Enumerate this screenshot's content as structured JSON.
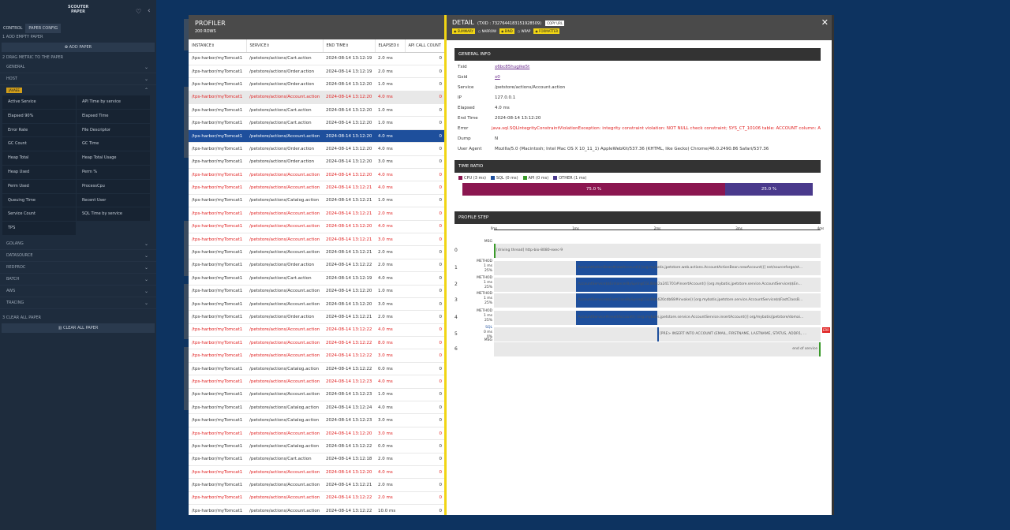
{
  "sidebar": {
    "brand": "SCOUTER PAPER",
    "tabs": [
      "CONTROL",
      "PAPER CONFIG"
    ],
    "section1": "1   ADD EMPTY PAPER",
    "add_button": "ADD PAPER",
    "section2": "2   DRAG METRIC TO THE PAPER",
    "groups_top": [
      "GENERAL",
      "HOST"
    ],
    "active_group_badge": "JAVAEE",
    "metrics": [
      "Active Service",
      "API Time by service",
      "Elapsed 90%",
      "Elapsed Time",
      "Error Rate",
      "File Descriptor",
      "GC Count",
      "GC Time",
      "Heap Total",
      "Heap Total Usage",
      "Heap Used",
      "Perm %",
      "Perm Used",
      "ProcessCpu",
      "Queuing Time",
      "Recent User",
      "Service Count",
      "SQL Time by service",
      "TPS"
    ],
    "groups_bottom": [
      "GOLANG",
      "DATASOURCE",
      "REDPROC",
      "BATCH",
      "AWS",
      "TRACING"
    ],
    "section3": "3   CLEAR ALL PAPER",
    "clear_button": "CLEAR ALL PAPER"
  },
  "profiler": {
    "title": "PROFILER",
    "rows_label": "200 ROWS",
    "columns": [
      "INSTANCE",
      "SERVICE",
      "END TIME",
      "ELAPSED",
      "API CALL COUNT"
    ],
    "rows": [
      {
        "instance": "/tps-harbor/myTomcat1",
        "service": "/petstore/actions/Cart.action",
        "end": "2024-08-14 13:12:19",
        "elapsed": "2.0 ms",
        "api": "0",
        "state": ""
      },
      {
        "instance": "/tps-harbor/myTomcat1",
        "service": "/petstore/actions/Order.action",
        "end": "2024-08-14 13:12:19",
        "elapsed": "2.0 ms",
        "api": "0",
        "state": ""
      },
      {
        "instance": "/tps-harbor/myTomcat1",
        "service": "/petstore/actions/Order.action",
        "end": "2024-08-14 13:12:20",
        "elapsed": "1.0 ms",
        "api": "0",
        "state": ""
      },
      {
        "instance": "/tps-harbor/myTomcat1",
        "service": "/petstore/actions/Account.action",
        "end": "2024-08-14 13:12:20",
        "elapsed": "4.0 ms",
        "api": "0",
        "state": "err hl"
      },
      {
        "instance": "/tps-harbor/myTomcat1",
        "service": "/petstore/actions/Cart.action",
        "end": "2024-08-14 13:12:20",
        "elapsed": "1.0 ms",
        "api": "0",
        "state": ""
      },
      {
        "instance": "/tps-harbor/myTomcat1",
        "service": "/petstore/actions/Cart.action",
        "end": "2024-08-14 13:12:20",
        "elapsed": "1.0 ms",
        "api": "0",
        "state": ""
      },
      {
        "instance": "/tps-harbor/myTomcat1",
        "service": "/petstore/actions/Account.action",
        "end": "2024-08-14 13:12:20",
        "elapsed": "4.0 ms",
        "api": "0",
        "state": "sel"
      },
      {
        "instance": "/tps-harbor/myTomcat1",
        "service": "/petstore/actions/Order.action",
        "end": "2024-08-14 13:12:20",
        "elapsed": "4.0 ms",
        "api": "0",
        "state": ""
      },
      {
        "instance": "/tps-harbor/myTomcat1",
        "service": "/petstore/actions/Order.action",
        "end": "2024-08-14 13:12:20",
        "elapsed": "3.0 ms",
        "api": "0",
        "state": ""
      },
      {
        "instance": "/tps-harbor/myTomcat1",
        "service": "/petstore/actions/Account.action",
        "end": "2024-08-14 13:12:20",
        "elapsed": "4.0 ms",
        "api": "0",
        "state": "err"
      },
      {
        "instance": "/tps-harbor/myTomcat1",
        "service": "/petstore/actions/Account.action",
        "end": "2024-08-14 13:12:21",
        "elapsed": "4.0 ms",
        "api": "0",
        "state": "err"
      },
      {
        "instance": "/tps-harbor/myTomcat1",
        "service": "/petstore/actions/Catalog.action",
        "end": "2024-08-14 13:12:21",
        "elapsed": "1.0 ms",
        "api": "0",
        "state": ""
      },
      {
        "instance": "/tps-harbor/myTomcat1",
        "service": "/petstore/actions/Account.action",
        "end": "2024-08-14 13:12:21",
        "elapsed": "2.0 ms",
        "api": "0",
        "state": "err"
      },
      {
        "instance": "/tps-harbor/myTomcat1",
        "service": "/petstore/actions/Account.action",
        "end": "2024-08-14 13:12:20",
        "elapsed": "4.0 ms",
        "api": "0",
        "state": "err"
      },
      {
        "instance": "/tps-harbor/myTomcat1",
        "service": "/petstore/actions/Account.action",
        "end": "2024-08-14 13:12:21",
        "elapsed": "3.0 ms",
        "api": "0",
        "state": "err"
      },
      {
        "instance": "/tps-harbor/myTomcat1",
        "service": "/petstore/actions/Account.action",
        "end": "2024-08-14 13:12:21",
        "elapsed": "2.0 ms",
        "api": "0",
        "state": ""
      },
      {
        "instance": "/tps-harbor/myTomcat1",
        "service": "/petstore/actions/Order.action",
        "end": "2024-08-14 13:12:22",
        "elapsed": "2.0 ms",
        "api": "0",
        "state": ""
      },
      {
        "instance": "/tps-harbor/myTomcat1",
        "service": "/petstore/actions/Cart.action",
        "end": "2024-08-14 13:12:19",
        "elapsed": "4.0 ms",
        "api": "0",
        "state": ""
      },
      {
        "instance": "/tps-harbor/myTomcat1",
        "service": "/petstore/actions/Account.action",
        "end": "2024-08-14 13:12:20",
        "elapsed": "1.0 ms",
        "api": "0",
        "state": ""
      },
      {
        "instance": "/tps-harbor/myTomcat1",
        "service": "/petstore/actions/Account.action",
        "end": "2024-08-14 13:12:20",
        "elapsed": "3.0 ms",
        "api": "0",
        "state": ""
      },
      {
        "instance": "/tps-harbor/myTomcat1",
        "service": "/petstore/actions/Order.action",
        "end": "2024-08-14 13:12:21",
        "elapsed": "2.0 ms",
        "api": "0",
        "state": ""
      },
      {
        "instance": "/tps-harbor/myTomcat1",
        "service": "/petstore/actions/Account.action",
        "end": "2024-08-14 13:12:22",
        "elapsed": "4.0 ms",
        "api": "0",
        "state": "err"
      },
      {
        "instance": "/tps-harbor/myTomcat1",
        "service": "/petstore/actions/Account.action",
        "end": "2024-08-14 13:12:22",
        "elapsed": "8.0 ms",
        "api": "0",
        "state": "err"
      },
      {
        "instance": "/tps-harbor/myTomcat1",
        "service": "/petstore/actions/Account.action",
        "end": "2024-08-14 13:12:22",
        "elapsed": "3.0 ms",
        "api": "0",
        "state": "err"
      },
      {
        "instance": "/tps-harbor/myTomcat1",
        "service": "/petstore/actions/Catalog.action",
        "end": "2024-08-14 13:12:22",
        "elapsed": "0.0 ms",
        "api": "0",
        "state": ""
      },
      {
        "instance": "/tps-harbor/myTomcat1",
        "service": "/petstore/actions/Account.action",
        "end": "2024-08-14 13:12:23",
        "elapsed": "4.0 ms",
        "api": "0",
        "state": "err"
      },
      {
        "instance": "/tps-harbor/myTomcat1",
        "service": "/petstore/actions/Account.action",
        "end": "2024-08-14 13:12:23",
        "elapsed": "1.0 ms",
        "api": "0",
        "state": ""
      },
      {
        "instance": "/tps-harbor/myTomcat1",
        "service": "/petstore/actions/Catalog.action",
        "end": "2024-08-14 13:12:24",
        "elapsed": "4.0 ms",
        "api": "0",
        "state": ""
      },
      {
        "instance": "/tps-harbor/myTomcat1",
        "service": "/petstore/actions/Catalog.action",
        "end": "2024-08-14 13:12:23",
        "elapsed": "3.0 ms",
        "api": "0",
        "state": ""
      },
      {
        "instance": "/tps-harbor/myTomcat1",
        "service": "/petstore/actions/Account.action",
        "end": "2024-08-14 13:12:20",
        "elapsed": "3.0 ms",
        "api": "0",
        "state": "err"
      },
      {
        "instance": "/tps-harbor/myTomcat1",
        "service": "/petstore/actions/Catalog.action",
        "end": "2024-08-14 13:12:22",
        "elapsed": "0.0 ms",
        "api": "0",
        "state": ""
      },
      {
        "instance": "/tps-harbor/myTomcat1",
        "service": "/petstore/actions/Cart.action",
        "end": "2024-08-14 13:12:18",
        "elapsed": "2.0 ms",
        "api": "0",
        "state": ""
      },
      {
        "instance": "/tps-harbor/myTomcat1",
        "service": "/petstore/actions/Account.action",
        "end": "2024-08-14 13:12:20",
        "elapsed": "4.0 ms",
        "api": "0",
        "state": "err"
      },
      {
        "instance": "/tps-harbor/myTomcat1",
        "service": "/petstore/actions/Account.action",
        "end": "2024-08-14 13:12:21",
        "elapsed": "2.0 ms",
        "api": "0",
        "state": ""
      },
      {
        "instance": "/tps-harbor/myTomcat1",
        "service": "/petstore/actions/Account.action",
        "end": "2024-08-14 13:12:22",
        "elapsed": "2.0 ms",
        "api": "0",
        "state": "err"
      },
      {
        "instance": "/tps-harbor/myTomcat1",
        "service": "/petstore/actions/Account.action",
        "end": "2024-08-14 13:12:22",
        "elapsed": "10.0 ms",
        "api": "0",
        "state": ""
      }
    ]
  },
  "detail": {
    "title": "DETAIL",
    "txid": "(TXID : 7327644183151928509)",
    "copy_url": "COPY URL",
    "toggles": [
      {
        "label": "SUMMARY",
        "on": true
      },
      {
        "label": "NARROW",
        "on": false
      },
      {
        "label": "BIND",
        "on": true
      },
      {
        "label": "WRAP",
        "on": false
      },
      {
        "label": "FORMATTER",
        "on": true
      }
    ],
    "general_title": "GENERAL INFO",
    "general": [
      {
        "k": "Txid",
        "v": "x6bc85hugike5t",
        "cls": "link"
      },
      {
        "k": "Gxid",
        "v": "x0",
        "cls": "link"
      },
      {
        "k": "Service",
        "v": "/petstore/actions/Account.action",
        "cls": ""
      },
      {
        "k": "IP",
        "v": "127.0.0.1",
        "cls": ""
      },
      {
        "k": "Elapsed",
        "v": "4.0 ms",
        "cls": ""
      },
      {
        "k": "End Time",
        "v": "2024-08-14 13:12:20",
        "cls": ""
      },
      {
        "k": "Error",
        "v": "java.sql.SQLIntegrityConstraintViolationException: integrity constraint violation: NOT NULL check constraint; SYS_CT_10106 table: ACCOUNT column: A",
        "cls": "err"
      },
      {
        "k": "Dump",
        "v": "N",
        "cls": ""
      },
      {
        "k": "User Agent",
        "v": "Mozilla/5.0 (Macintosh; Intel Mac OS X 10_11_1) AppleWebKit/537.36 (KHTML, like Gecko) Chrome/46.0.2490.86 Safari/537.36",
        "cls": ""
      }
    ],
    "time_ratio_title": "TIME RATIO",
    "legend": [
      {
        "label": "CPU (3 ms)",
        "color": "#8b1650"
      },
      {
        "label": "SQL (0 ms)",
        "color": "#1e4f9c"
      },
      {
        "label": "API (0 ms)",
        "color": "#3a9a2a"
      },
      {
        "label": "OTHER (1 ms)",
        "color": "#4a3a8c"
      }
    ],
    "ratio": [
      {
        "label": "75.0 %",
        "pct": 75,
        "color": "#8b1650"
      },
      {
        "label": "25.0 %",
        "pct": 25,
        "color": "#4a3a8c"
      }
    ],
    "steps_title": "PROFILE STEP",
    "ticks": [
      "0ms",
      "1ms",
      "2ms",
      "3ms",
      "4ms"
    ],
    "steps": [
      {
        "idx": "0",
        "type": [
          "MSG"
        ],
        "start": 0,
        "dur": 0,
        "text": "[driving thread] http-bio-8080-exec-9",
        "bar_color": "#3a9a2a"
      },
      {
        "idx": "1",
        "type": [
          "METHOD",
          "1 ms",
          "25%"
        ],
        "start": 1,
        "dur": 1,
        "text": "AccountActionBean#newAccount() [org.mybatis.jpetstore.web.actions.AccountActionBean.newAccount()] net/sourceforge/st...",
        "bar_color": "#1e4f9c"
      },
      {
        "idx": "2",
        "type": [
          "METHOD",
          "1 ms",
          "25%"
        ],
        "start": 1,
        "dur": 1,
        "text": "AccountService$$EnhancerBySpringCGLIB$$2a241701#insertAccount() [org.mybatis.jpetstore.service.AccountService$$En...",
        "bar_color": "#1e4f9c"
      },
      {
        "idx": "3",
        "type": [
          "METHOD",
          "1 ms",
          "25%"
        ],
        "start": 1,
        "dur": 1,
        "text": "AccountService$$FastClassBySpringCGLIB$$620cdb68#invoke() [org.mybatis.jpetstore.service.AccountService$$FastClassB...",
        "bar_color": "#1e4f9c"
      },
      {
        "idx": "4",
        "type": [
          "METHOD",
          "1 ms",
          "25%"
        ],
        "start": 1,
        "dur": 1,
        "text": "AccountService#insertAccount() [org.mybatis.jpetstore.service.AccountService.insertAccount()] org/mybatis/jpetstore/domai...",
        "bar_color": "#1e4f9c"
      },
      {
        "idx": "5",
        "type": [
          "SQL",
          "0 ms",
          "0%"
        ],
        "start": 2,
        "dur": 0,
        "text": "[PRE> INSERT INTO ACCOUNT (EMAIL, FIRSTNAME, LASTNAME, STATUS, ADDR1, ...",
        "bar_color": "#1e4f9c"
      },
      {
        "idx": "6",
        "type": [
          "MSG"
        ],
        "start": 4,
        "dur": 0,
        "text": "end of service",
        "bar_color": "#3a9a2a"
      }
    ],
    "err_tag": "ERR"
  },
  "colors": {
    "accent": "#f1d514",
    "selected": "#1e4f9c",
    "error": "#e02020"
  }
}
